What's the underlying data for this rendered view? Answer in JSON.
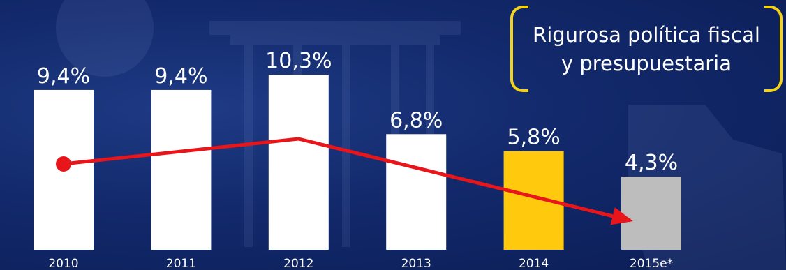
{
  "callout": {
    "line1": "Rigurosa política fiscal",
    "line2": "y presupuestaria"
  },
  "colors": {
    "background": "#12296b",
    "bar_default": "#ffffff",
    "bar_highlight": "#ffc90e",
    "bar_estimate": "#bdbdbd",
    "trend_arrow": "#e8151b",
    "callout_bracket": "#f2d21b"
  },
  "chart_data": {
    "type": "bar",
    "categories": [
      "2010",
      "2011",
      "2012",
      "2013",
      "2014",
      "2015e*"
    ],
    "values": [
      9.4,
      9.4,
      10.3,
      6.8,
      5.8,
      4.3
    ],
    "value_labels": [
      "9,4%",
      "9,4%",
      "10,3%",
      "6,8%",
      "5,8%",
      "4,3%"
    ],
    "unit": "%",
    "bar_colors": [
      "#ffffff",
      "#ffffff",
      "#ffffff",
      "#ffffff",
      "#ffc90e",
      "#bdbdbd"
    ],
    "ylim": [
      0,
      10.3
    ],
    "grid": false,
    "legend": "none",
    "annotations": [
      {
        "type": "trend-arrow",
        "direction": "down",
        "color": "#e8151b"
      }
    ]
  }
}
